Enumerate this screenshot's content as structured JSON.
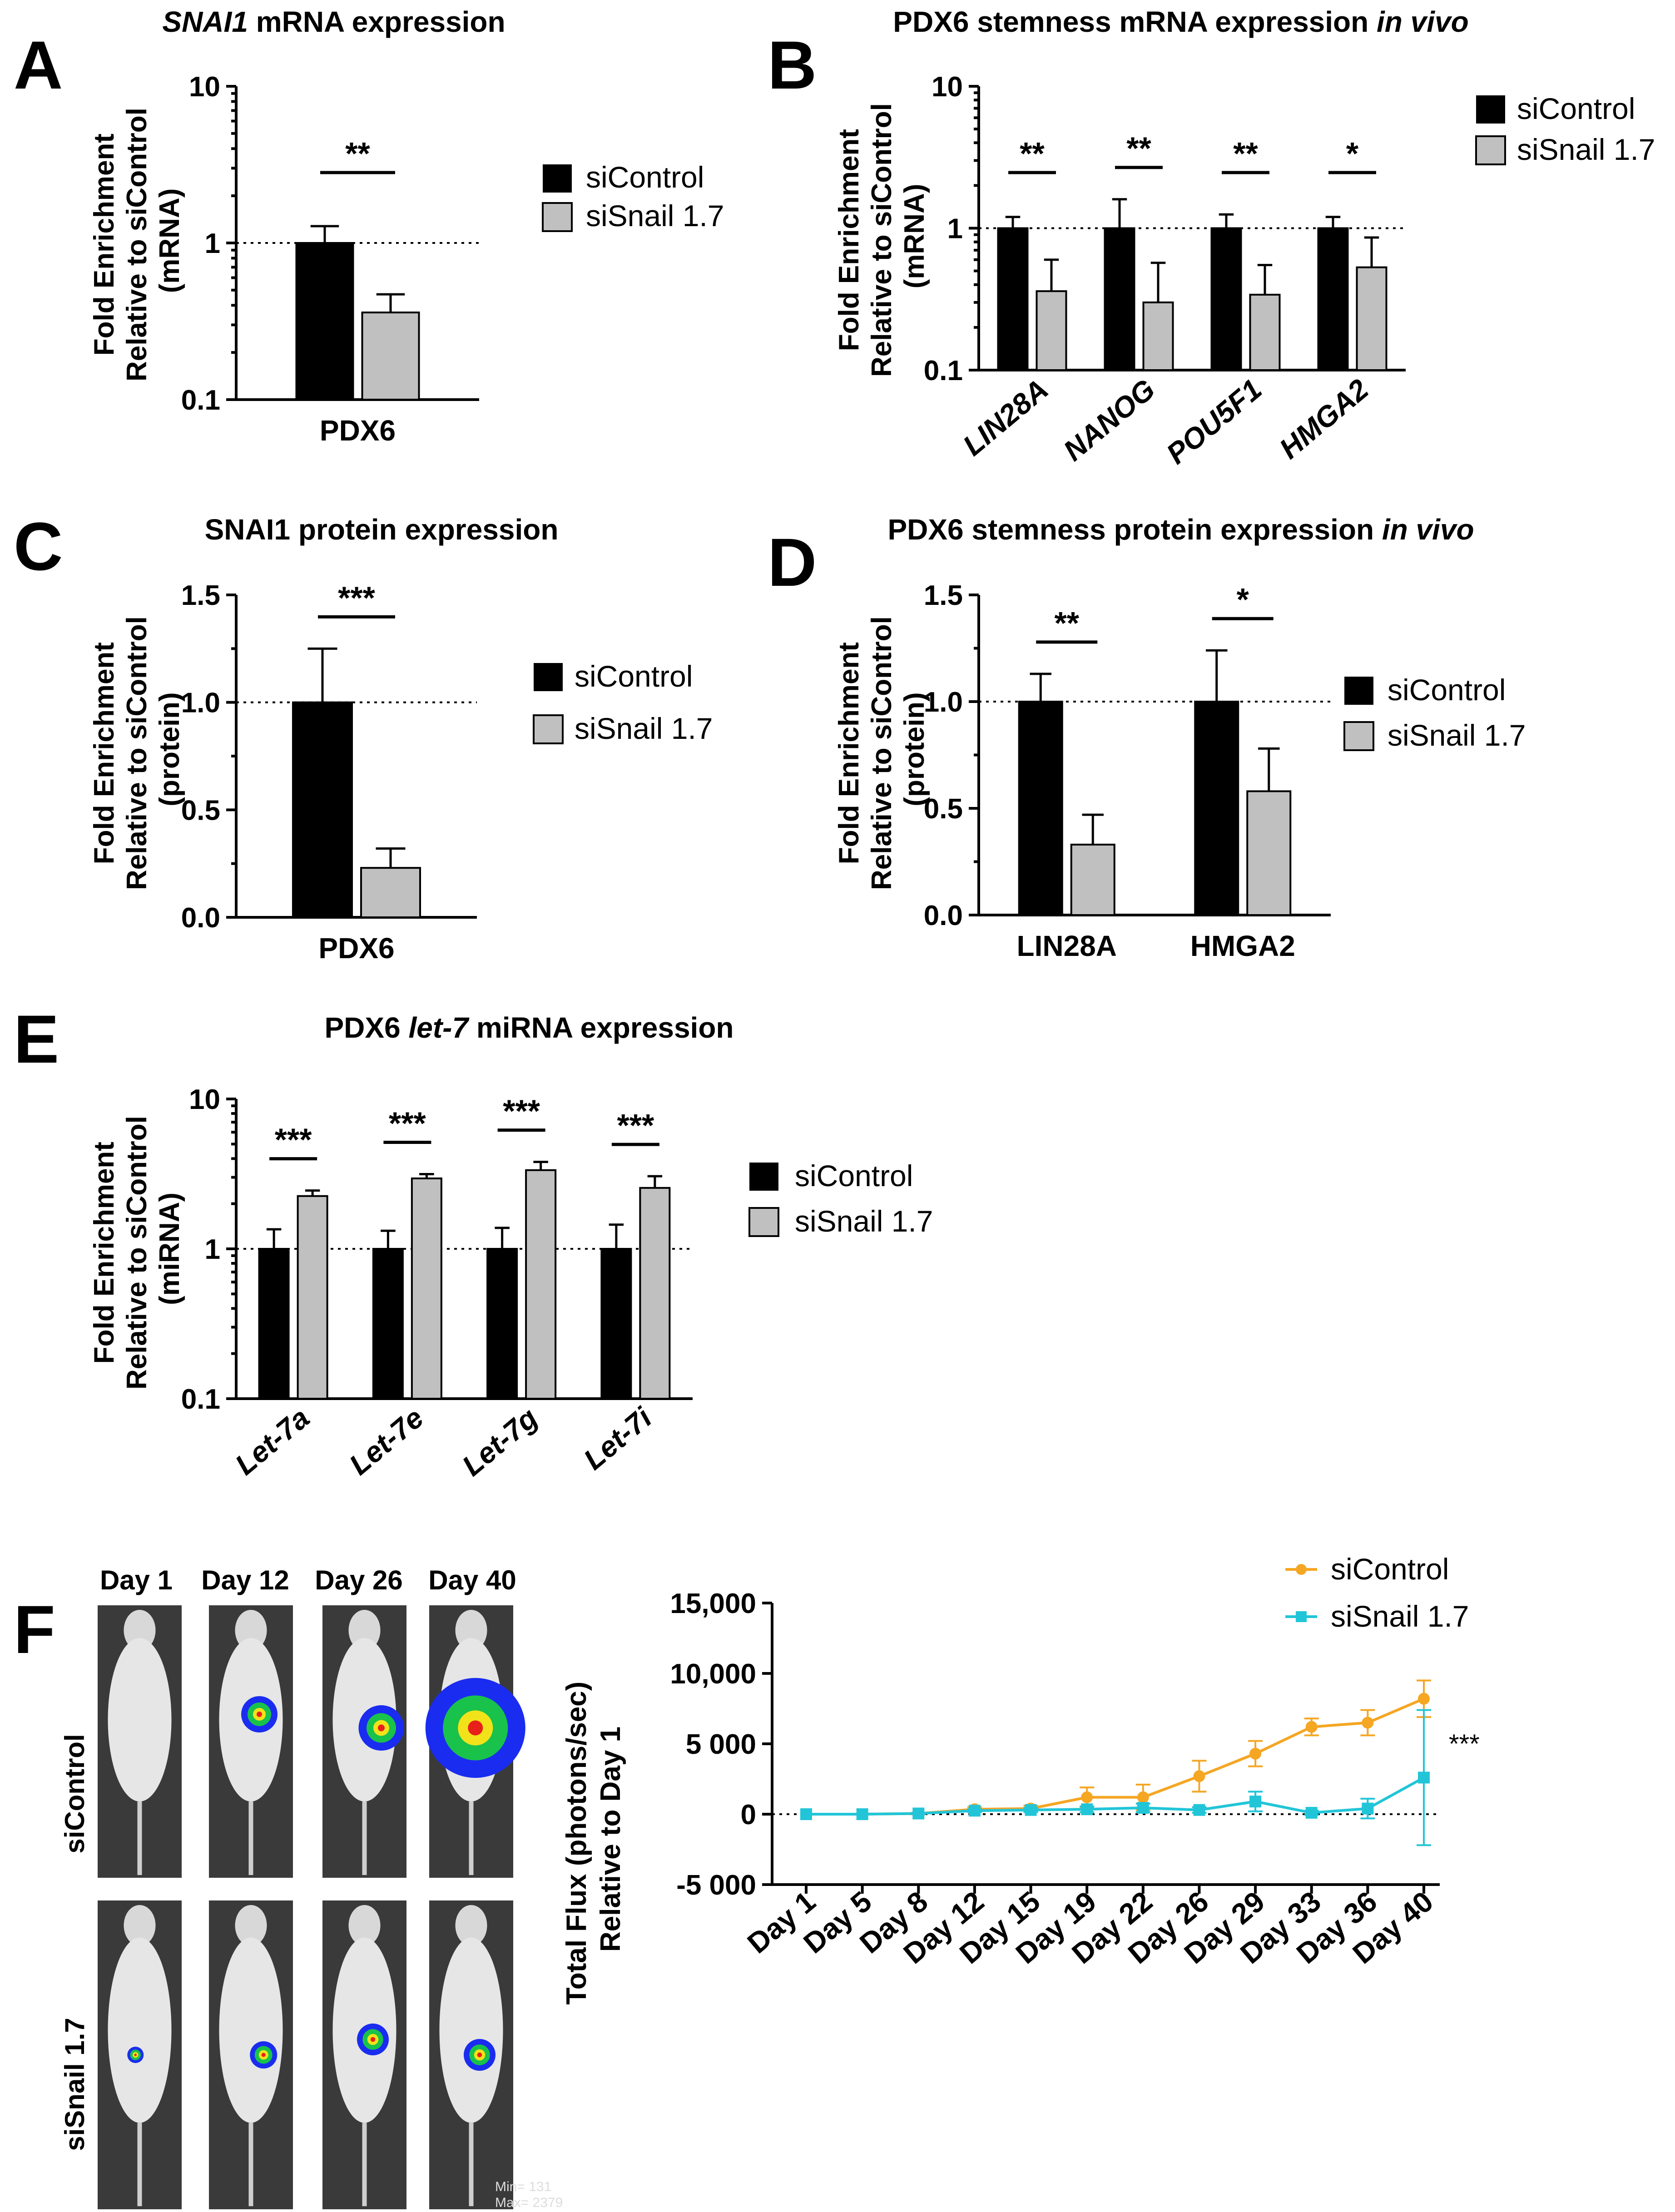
{
  "colors": {
    "control": "#000000",
    "snail": "#c0c0c0",
    "line_control": "#f5a623",
    "line_snail": "#22c5d8"
  },
  "legend": {
    "control": "siControl",
    "snail": "siSnail 1.7"
  },
  "panels": {
    "A": {
      "letter": "A",
      "title_italic": "SNAI1",
      "title_rest": " mRNA expression",
      "ylabel": [
        "Fold Enrichment",
        "Relative to siControl",
        "(mRNA)"
      ]
    },
    "B": {
      "letter": "B",
      "title_rest": "PDX6 stemness mRNA expression ",
      "title_italic": "in vivo",
      "ylabel": [
        "Fold Enrichment",
        "Relative to siControl",
        "(mRNA)"
      ]
    },
    "C": {
      "letter": "C",
      "title": "SNAI1 protein expression",
      "ylabel": [
        "Fold Enrichment",
        "Relative to siControl",
        "(protein)"
      ]
    },
    "D": {
      "letter": "D",
      "title_rest": "PDX6 stemness protein expression ",
      "title_italic": "in vivo",
      "ylabel": [
        "Fold Enrichment",
        "Relative to siControl",
        "(protein)"
      ]
    },
    "E": {
      "letter": "E",
      "title_rest": "PDX6 ",
      "title_italic": "let-7",
      "title_rest2": " miRNA expression",
      "ylabel": [
        "Fold Enrichment",
        "Relative to siControl",
        "(miRNA)"
      ]
    },
    "F": {
      "letter": "F",
      "days": [
        "Day 1",
        "Day 12",
        "Day 26",
        "Day 40"
      ],
      "rows": [
        "siControl",
        "siSnail 1.7"
      ],
      "image_text": [
        "Min= 131",
        "Max= 2379"
      ],
      "ylabel": [
        "Total Flux (photons/sec)",
        "Relative to Day 1"
      ]
    }
  },
  "chart_data": [
    {
      "id": "A",
      "type": "bar",
      "scale": "log",
      "ylim": [
        0.1,
        10
      ],
      "yticks": [
        "0.1",
        "1",
        "10"
      ],
      "categories": [
        "PDX6"
      ],
      "italic_categories": false,
      "series": [
        {
          "name": "siControl",
          "values": [
            1.0
          ],
          "errors": [
            0.28
          ]
        },
        {
          "name": "siSnail 1.7",
          "values": [
            0.36
          ],
          "errors": [
            0.11
          ]
        }
      ],
      "significance": [
        "**"
      ]
    },
    {
      "id": "B",
      "type": "bar",
      "scale": "log",
      "ylim": [
        0.1,
        10
      ],
      "yticks": [
        "0.1",
        "1",
        "10"
      ],
      "categories": [
        "LIN28A",
        "NANOG",
        "POU5F1",
        "HMGA2"
      ],
      "italic_categories": true,
      "series": [
        {
          "name": "siControl",
          "values": [
            1.0,
            1.0,
            1.0,
            1.0
          ],
          "errors": [
            0.2,
            0.6,
            0.25,
            0.2
          ]
        },
        {
          "name": "siSnail 1.7",
          "values": [
            0.36,
            0.3,
            0.34,
            0.53
          ],
          "errors": [
            0.24,
            0.27,
            0.21,
            0.33
          ]
        }
      ],
      "significance": [
        "**",
        "**",
        "**",
        "*"
      ]
    },
    {
      "id": "C",
      "type": "bar",
      "scale": "linear",
      "ylim": [
        0,
        1.5
      ],
      "yticks": [
        "0.0",
        "0.5",
        "1.0",
        "1.5"
      ],
      "categories": [
        "PDX6"
      ],
      "italic_categories": false,
      "series": [
        {
          "name": "siControl",
          "values": [
            1.0
          ],
          "errors": [
            0.25
          ]
        },
        {
          "name": "siSnail 1.7",
          "values": [
            0.23
          ],
          "errors": [
            0.09
          ]
        }
      ],
      "significance": [
        "***"
      ]
    },
    {
      "id": "D",
      "type": "bar",
      "scale": "linear",
      "ylim": [
        0,
        1.5
      ],
      "yticks": [
        "0.0",
        "0.5",
        "1.0",
        "1.5"
      ],
      "categories": [
        "LIN28A",
        "HMGA2"
      ],
      "italic_categories": false,
      "series": [
        {
          "name": "siControl",
          "values": [
            1.0,
            1.0
          ],
          "errors": [
            0.13,
            0.24
          ]
        },
        {
          "name": "siSnail 1.7",
          "values": [
            0.33,
            0.58
          ],
          "errors": [
            0.14,
            0.2
          ]
        }
      ],
      "significance": [
        "**",
        "*"
      ]
    },
    {
      "id": "E",
      "type": "bar",
      "scale": "log",
      "ylim": [
        0.1,
        10
      ],
      "yticks": [
        "0.1",
        "1",
        "10"
      ],
      "categories": [
        "Let-7a",
        "Let-7e",
        "Let-7g",
        "Let-7i"
      ],
      "italic_categories": true,
      "series": [
        {
          "name": "siControl",
          "values": [
            1.0,
            1.0,
            1.0,
            1.0
          ],
          "errors": [
            0.35,
            0.32,
            0.38,
            0.45
          ]
        },
        {
          "name": "siSnail 1.7",
          "values": [
            2.25,
            2.95,
            3.35,
            2.55
          ],
          "errors": [
            0.2,
            0.2,
            0.45,
            0.5
          ]
        }
      ],
      "significance": [
        "***",
        "***",
        "***",
        "***"
      ]
    },
    {
      "id": "F",
      "type": "line",
      "ylim": [
        -5000,
        15000
      ],
      "yticks": [
        "-5 000",
        "0",
        "5 000",
        "10,000",
        "15,000"
      ],
      "categories": [
        "Day 1",
        "Day 5",
        "Day 8",
        "Day 12",
        "Day 15",
        "Day 19",
        "Day 22",
        "Day 26",
        "Day 29",
        "Day 33",
        "Day 36",
        "Day 40"
      ],
      "series": [
        {
          "name": "siControl",
          "values": [
            0,
            0,
            50,
            350,
            400,
            1200,
            1200,
            2700,
            4300,
            6200,
            6500,
            8200
          ],
          "errors": [
            0,
            0,
            60,
            150,
            200,
            700,
            900,
            1100,
            900,
            600,
            900,
            1300
          ]
        },
        {
          "name": "siSnail 1.7",
          "values": [
            0,
            0,
            50,
            250,
            300,
            350,
            450,
            300,
            900,
            100,
            400,
            2600
          ],
          "errors": [
            0,
            0,
            40,
            100,
            150,
            200,
            300,
            200,
            700,
            150,
            700,
            4800
          ]
        }
      ],
      "significance": "***"
    }
  ]
}
